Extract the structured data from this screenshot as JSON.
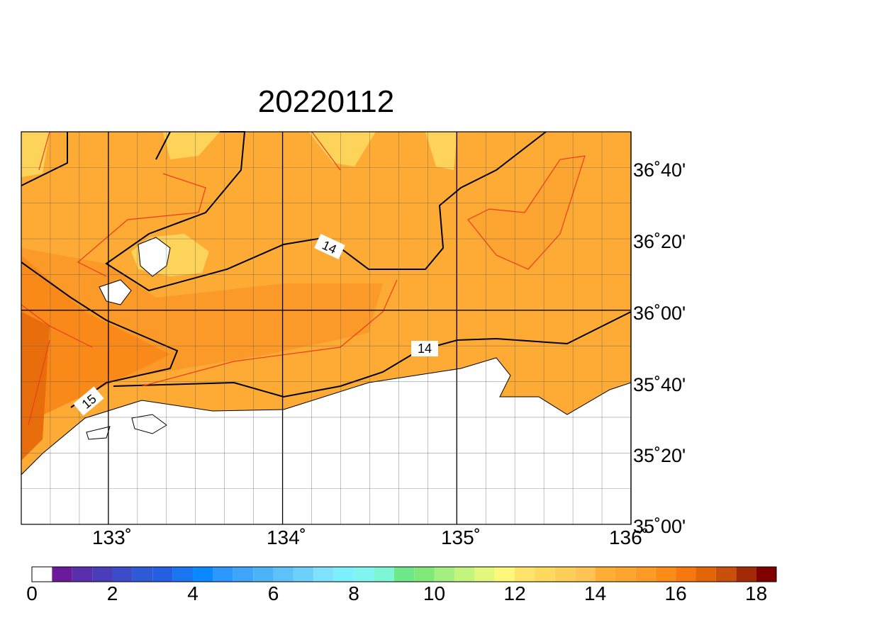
{
  "title": "20220112",
  "map": {
    "lat_labels": [
      "36˚40'",
      "36˚20'",
      "36˚00'",
      "35˚40'",
      "35˚20'",
      "35˚00'"
    ],
    "lon_labels": [
      "133˚",
      "134˚",
      "135˚",
      "136˚"
    ],
    "contour_labels": [
      "14",
      "14",
      "15"
    ]
  },
  "colorbar": {
    "ticks": [
      0,
      2,
      4,
      6,
      8,
      10,
      12,
      14,
      16,
      18
    ],
    "step": 0.5,
    "colors": [
      "#ffffff",
      "#6a1b9a",
      "#5a2fab",
      "#4a3dba",
      "#3d4cc8",
      "#2f5ad6",
      "#235fe0",
      "#1a75f0",
      "#0a88ff",
      "#2b97ff",
      "#3ea5fa",
      "#4cb3f7",
      "#5cc2f8",
      "#6cd0fb",
      "#7ee2ff",
      "#7cf0ff",
      "#80f5f0",
      "#7ef5d5",
      "#6fe88a",
      "#7fe879",
      "#a3ef7f",
      "#c3f57e",
      "#e2f77b",
      "#fdf77a",
      "#fde36a",
      "#fdd95e",
      "#fdce58",
      "#fdc454",
      "#fcae36",
      "#fca530",
      "#fc9a26",
      "#fb8c18",
      "#f6780e",
      "#e26508",
      "#c95008",
      "#a32a06",
      "#800000"
    ]
  }
}
